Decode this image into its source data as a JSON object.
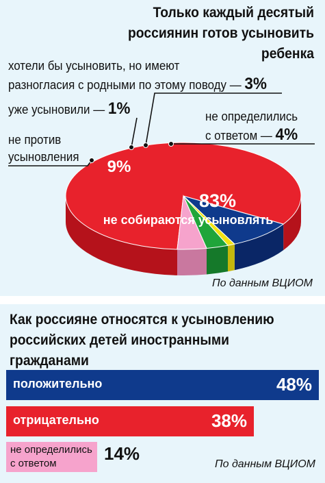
{
  "colors": {
    "background": "#e8f5fb",
    "red": "#e8222c",
    "red_dark": "#b5121b",
    "navy": "#0f3a8c",
    "navy_dark": "#0a2666",
    "yellow": "#f3e312",
    "green": "#20a53a",
    "pink": "#f6a3cc"
  },
  "chart_data": [
    {
      "type": "pie",
      "title": "Только каждый десятый россиянин готов усыновить ребенка",
      "slices": [
        {
          "label": "не собираются усыновлять",
          "value": 83,
          "display": "83%"
        },
        {
          "label": "не против усыновления",
          "value": 9,
          "display": "9%"
        },
        {
          "label": "уже усыновили",
          "value": 1,
          "display": "1%"
        },
        {
          "label": "хотели бы усыновить, но имеют разногласия с родными по этому поводу",
          "value": 3,
          "display": "3%"
        },
        {
          "label": "не определились с ответом",
          "value": 4,
          "display": "4%"
        }
      ],
      "source": "По данным ВЦИОМ"
    },
    {
      "type": "bar",
      "orientation": "horizontal",
      "title": "Как россияне относятся к усыновлению российских детей иностранными гражданами",
      "categories": [
        "положительно",
        "отрицательно",
        "не определились с ответом"
      ],
      "values": [
        48,
        38,
        14
      ],
      "display": [
        "48%",
        "38%",
        "14%"
      ],
      "xlim": [
        0,
        48
      ],
      "source": "По данным ВЦИОМ"
    }
  ],
  "pie_labels": {
    "wish_line1": "хотели бы усыновить, но имеют",
    "wish_line2": "разногласия с родными по этому поводу —",
    "wish_pct": "3%",
    "adopted": "уже усыновили —",
    "adopted_pct": "1%",
    "undecided_line1": "не определились",
    "undecided_line2": "с ответом —",
    "undecided_pct": "4%",
    "notagainst_line1": "не против",
    "notagainst_line2": "усыновления",
    "notagainst_pct": "9%",
    "main_pct": "83%",
    "main_label": "не собираются усыновлять"
  }
}
